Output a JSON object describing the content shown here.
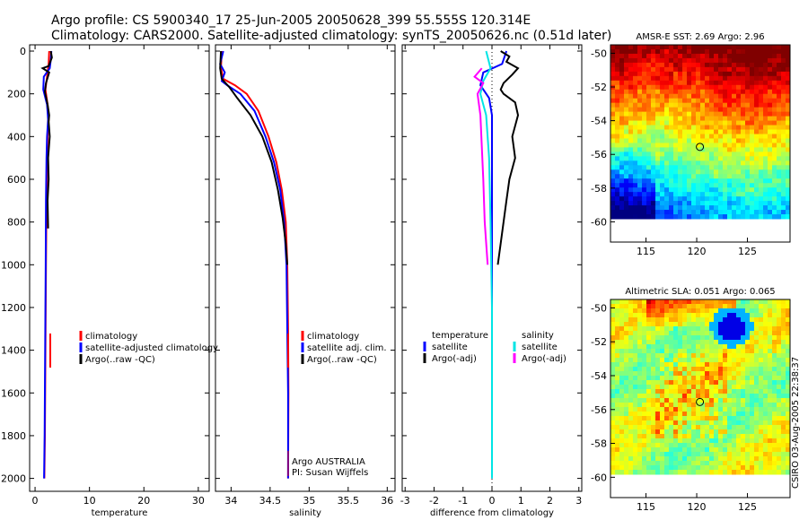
{
  "title_line1": "Argo profile: CS 5900340_17 25-Jun-2005 20050628_399 55.555S 120.314E",
  "title_line2": "Climatology: CARS2000. Satellite-adjusted climatology: synTS_20050626.nc (0.51d later)",
  "side_label": "CSIRO 03-Aug-2005 22:38:37",
  "colors": {
    "red": "#ff0000",
    "blue": "#0000ff",
    "black": "#000000",
    "cyan": "#00e5e5",
    "magenta": "#ff00ff",
    "gray": "#888888"
  },
  "chart_data": [
    {
      "id": "temperature",
      "type": "line",
      "xlabel": "temperature",
      "ylabel": "",
      "xlim": [
        -1,
        32
      ],
      "ylim": [
        2050,
        0
      ],
      "xticks": [
        "0",
        "10",
        "20",
        "30"
      ],
      "yticks": [
        "0",
        "200",
        "400",
        "600",
        "800",
        "1000",
        "1200",
        "1400",
        "1600",
        "1800",
        "2000"
      ],
      "legend": [
        "climatology",
        "satellite-adjusted climatology",
        "Argo(..raw -QC)"
      ],
      "series": [
        {
          "name": "climatology",
          "color": "red",
          "points": [
            [
              2.6,
              0
            ],
            [
              2.5,
              60
            ],
            [
              2.2,
              120
            ],
            [
              1.9,
              180
            ],
            [
              2.3,
              250
            ],
            [
              2.5,
              320
            ],
            [
              2.3,
              400
            ],
            [
              2.2,
              500
            ],
            [
              2.1,
              700
            ],
            [
              2.0,
              1000
            ],
            [
              1.9,
              1400
            ],
            [
              1.8,
              1800
            ],
            [
              1.7,
              2000
            ]
          ]
        },
        {
          "name": "satellite-adjusted climatology",
          "color": "blue",
          "points": [
            [
              3.0,
              0
            ],
            [
              2.9,
              40
            ],
            [
              2.7,
              80
            ],
            [
              1.6,
              120
            ],
            [
              1.5,
              180
            ],
            [
              2.2,
              250
            ],
            [
              2.4,
              320
            ],
            [
              2.2,
              400
            ],
            [
              2.1,
              500
            ],
            [
              2.0,
              700
            ],
            [
              1.95,
              1000
            ],
            [
              1.85,
              1400
            ],
            [
              1.75,
              1800
            ],
            [
              1.65,
              2000
            ]
          ]
        },
        {
          "name": "Argo(..raw -QC)",
          "color": "black",
          "points": [
            [
              2.9,
              0
            ],
            [
              3.1,
              30
            ],
            [
              2.5,
              70
            ],
            [
              1.4,
              80
            ],
            [
              2.6,
              100
            ],
            [
              2.0,
              150
            ],
            [
              1.8,
              190
            ],
            [
              2.3,
              250
            ],
            [
              2.6,
              300
            ],
            [
              2.5,
              330
            ],
            [
              2.7,
              400
            ],
            [
              2.4,
              500
            ],
            [
              2.5,
              600
            ],
            [
              2.3,
              700
            ],
            [
              2.4,
              830
            ]
          ]
        }
      ]
    },
    {
      "id": "salinity",
      "type": "line",
      "xlabel": "salinity",
      "ylabel": "",
      "xlim": [
        33.8,
        36.1
      ],
      "ylim": [
        2050,
        0
      ],
      "xticks": [
        "34",
        "34.5",
        "35",
        "35.5",
        "36"
      ],
      "legend": [
        "climatology",
        "satellite adj. clim.",
        "Argo(..raw -QC)"
      ],
      "annotations": [
        "Argo AUSTRALIA",
        "PI: Susan Wijffels"
      ],
      "series": [
        {
          "name": "climatology",
          "color": "red",
          "points": [
            [
              33.88,
              0
            ],
            [
              33.87,
              80
            ],
            [
              33.9,
              130
            ],
            [
              34.05,
              160
            ],
            [
              34.2,
              200
            ],
            [
              34.35,
              280
            ],
            [
              34.48,
              400
            ],
            [
              34.58,
              520
            ],
            [
              34.65,
              650
            ],
            [
              34.7,
              800
            ],
            [
              34.72,
              1000
            ],
            [
              34.73,
              1300
            ],
            [
              34.735,
              1600
            ],
            [
              34.73,
              2000
            ]
          ]
        },
        {
          "name": "satellite adj. clim.",
          "color": "blue",
          "points": [
            [
              33.9,
              0
            ],
            [
              33.86,
              60
            ],
            [
              33.92,
              100
            ],
            [
              33.88,
              140
            ],
            [
              33.95,
              160
            ],
            [
              34.12,
              200
            ],
            [
              34.3,
              280
            ],
            [
              34.44,
              400
            ],
            [
              34.55,
              520
            ],
            [
              34.63,
              650
            ],
            [
              34.68,
              800
            ],
            [
              34.71,
              1000
            ],
            [
              34.72,
              1300
            ],
            [
              34.73,
              1600
            ],
            [
              34.73,
              2000
            ]
          ]
        },
        {
          "name": "Argo(..raw -QC)",
          "color": "black",
          "points": [
            [
              33.87,
              0
            ],
            [
              33.86,
              80
            ],
            [
              33.88,
              130
            ],
            [
              33.98,
              170
            ],
            [
              34.08,
              220
            ],
            [
              34.25,
              300
            ],
            [
              34.4,
              400
            ],
            [
              34.52,
              520
            ],
            [
              34.6,
              650
            ],
            [
              34.66,
              780
            ],
            [
              34.7,
              900
            ],
            [
              34.72,
              1000
            ]
          ]
        }
      ]
    },
    {
      "id": "difference",
      "type": "line",
      "xlabel": "difference from climatology",
      "ylabel": "",
      "xlim": [
        -3.1,
        3.1
      ],
      "ylim": [
        2050,
        0
      ],
      "xticks": [
        "-3",
        "-2",
        "-1",
        "0",
        "1",
        "2",
        "3"
      ],
      "legend": [
        "temperature",
        "satellite",
        "Argo(-adj)",
        "salinity",
        "satellite",
        "Argo(-adj)"
      ],
      "series": [
        {
          "name": "temperature satellite",
          "color": "blue",
          "points": [
            [
              0.5,
              0
            ],
            [
              0.35,
              60
            ],
            [
              -0.3,
              100
            ],
            [
              -0.4,
              160
            ],
            [
              -0.1,
              220
            ],
            [
              0,
              300
            ],
            [
              0,
              2000
            ]
          ]
        },
        {
          "name": "temperature Argo(-adj)",
          "color": "black",
          "points": [
            [
              0.3,
              0
            ],
            [
              0.6,
              25
            ],
            [
              0.5,
              50
            ],
            [
              0.9,
              80
            ],
            [
              0.7,
              110
            ],
            [
              0.4,
              150
            ],
            [
              0.3,
              180
            ],
            [
              0.4,
              200
            ],
            [
              0.8,
              240
            ],
            [
              0.9,
              300
            ],
            [
              0.7,
              400
            ],
            [
              0.8,
              500
            ],
            [
              0.6,
              600
            ],
            [
              0.5,
              700
            ],
            [
              0.4,
              800
            ],
            [
              0.3,
              900
            ],
            [
              0.2,
              1000
            ]
          ]
        },
        {
          "name": "salinity satellite",
          "color": "cyan",
          "points": [
            [
              -0.2,
              0
            ],
            [
              -0.05,
              80
            ],
            [
              -0.3,
              140
            ],
            [
              -0.4,
              200
            ],
            [
              -0.2,
              300
            ],
            [
              -0.1,
              500
            ],
            [
              -0.05,
              800
            ],
            [
              0,
              1200
            ],
            [
              0,
              2000
            ]
          ]
        },
        {
          "name": "salinity Argo(-adj)",
          "color": "magenta",
          "points": [
            [
              -0.35,
              80
            ],
            [
              -0.6,
              120
            ],
            [
              -0.3,
              150
            ],
            [
              -0.5,
              200
            ],
            [
              -0.4,
              300
            ],
            [
              -0.35,
              450
            ],
            [
              -0.3,
              600
            ],
            [
              -0.25,
              800
            ],
            [
              -0.15,
              1000
            ]
          ]
        }
      ]
    },
    {
      "id": "sst_map",
      "type": "heatmap",
      "title": "AMSR-E SST: 2.69 Argo: 2.96",
      "xlim": [
        111.5,
        129.2
      ],
      "ylim": [
        -61.2,
        -49.5
      ],
      "xticks": [
        "115",
        "120",
        "125"
      ],
      "yticks": [
        "-50",
        "-52",
        "-54",
        "-56",
        "-58",
        "-60"
      ],
      "marker": [
        120.314,
        -55.555
      ]
    },
    {
      "id": "sla_map",
      "type": "heatmap",
      "title": "Altimetric SLA: 0.051 Argo: 0.065",
      "xlim": [
        111.5,
        129.2
      ],
      "ylim": [
        -61.2,
        -49.5
      ],
      "xticks": [
        "115",
        "120",
        "125"
      ],
      "yticks": [
        "-50",
        "-52",
        "-54",
        "-56",
        "-58",
        "-60"
      ],
      "marker": [
        120.314,
        -55.555
      ]
    }
  ]
}
